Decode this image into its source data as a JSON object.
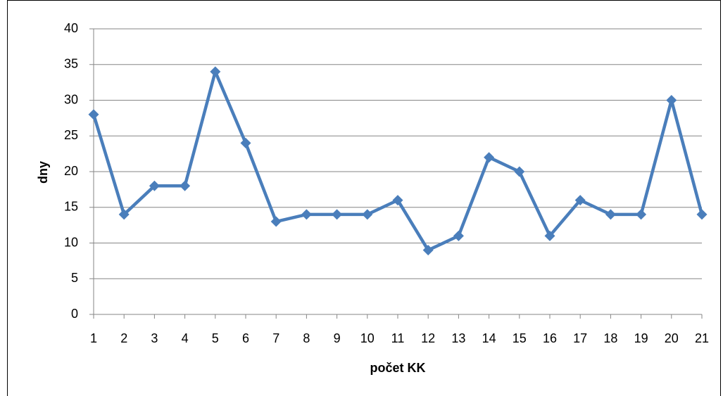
{
  "chart_data": {
    "type": "line",
    "x": [
      1,
      2,
      3,
      4,
      5,
      6,
      7,
      8,
      9,
      10,
      11,
      12,
      13,
      14,
      15,
      16,
      17,
      18,
      19,
      20,
      21
    ],
    "series": [
      {
        "name": null,
        "color": "#4a7ebb",
        "values": [
          28,
          14,
          18,
          18,
          34,
          24,
          13,
          14,
          14,
          14,
          16,
          9,
          11,
          22,
          20,
          11,
          16,
          14,
          14,
          30,
          14
        ]
      }
    ],
    "xlabel": "počet KK",
    "ylabel": "dny",
    "xlim": [
      1,
      21
    ],
    "xticks": [
      1,
      2,
      3,
      4,
      5,
      6,
      7,
      8,
      9,
      10,
      11,
      12,
      13,
      14,
      15,
      16,
      17,
      18,
      19,
      20,
      21
    ],
    "ylim": [
      0,
      40
    ],
    "yticks": [
      0,
      5,
      10,
      15,
      20,
      25,
      30,
      35,
      40
    ],
    "grid": true
  }
}
